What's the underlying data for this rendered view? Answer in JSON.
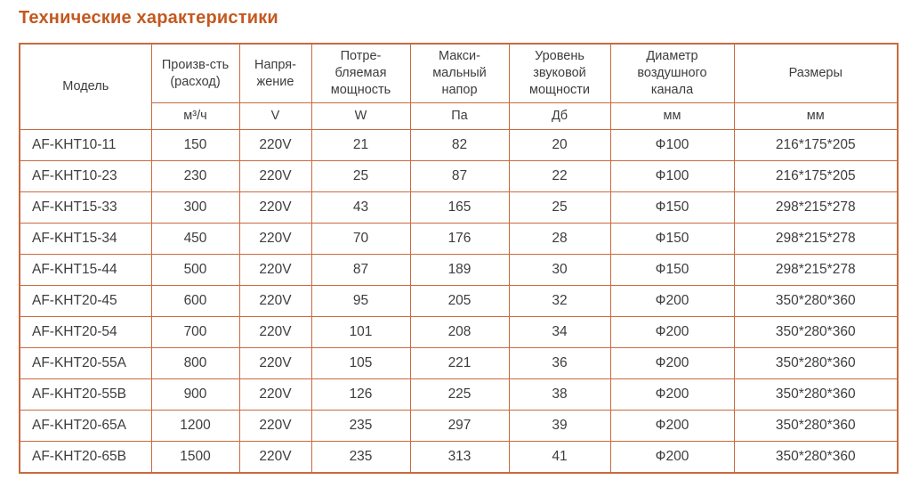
{
  "page_title": "Технические характеристики",
  "colors": {
    "accent": "#C4581F",
    "table_border": "#C96A3E",
    "text": "#3D3D3D",
    "background": "#FFFFFF"
  },
  "table": {
    "column_keys": [
      "model",
      "flow",
      "voltage",
      "power",
      "pressure",
      "noise",
      "diameter",
      "dimensions"
    ],
    "headers": [
      {
        "label": "Модель",
        "unit": ""
      },
      {
        "label": "Произв-сть\n(расход)",
        "unit": "м³/ч"
      },
      {
        "label": "Напря-\nжение",
        "unit": "V"
      },
      {
        "label": "Потре-\nбляемая\nмощность",
        "unit": "W"
      },
      {
        "label": "Макси-\nмальный\nнапор",
        "unit": "Па"
      },
      {
        "label": "Уровень\nзвуковой\nмощности",
        "unit": "Дб"
      },
      {
        "label": "Диаметр\nвоздушного\nканала",
        "unit": "мм"
      },
      {
        "label": "Размеры",
        "unit": "мм"
      }
    ],
    "rows": [
      {
        "model": "AF-KHT10-11",
        "flow": "150",
        "voltage": "220V",
        "power": "21",
        "pressure": "82",
        "noise": "20",
        "diameter": "Ф100",
        "dimensions": "216*175*205"
      },
      {
        "model": "AF-KHT10-23",
        "flow": "230",
        "voltage": "220V",
        "power": "25",
        "pressure": "87",
        "noise": "22",
        "diameter": "Ф100",
        "dimensions": "216*175*205"
      },
      {
        "model": "AF-KHT15-33",
        "flow": "300",
        "voltage": "220V",
        "power": "43",
        "pressure": "165",
        "noise": "25",
        "diameter": "Ф150",
        "dimensions": "298*215*278"
      },
      {
        "model": "AF-KHT15-34",
        "flow": "450",
        "voltage": "220V",
        "power": "70",
        "pressure": "176",
        "noise": "28",
        "diameter": "Ф150",
        "dimensions": "298*215*278"
      },
      {
        "model": "AF-KHT15-44",
        "flow": "500",
        "voltage": "220V",
        "power": "87",
        "pressure": "189",
        "noise": "30",
        "diameter": "Ф150",
        "dimensions": "298*215*278"
      },
      {
        "model": "AF-KHT20-45",
        "flow": "600",
        "voltage": "220V",
        "power": "95",
        "pressure": "205",
        "noise": "32",
        "diameter": "Ф200",
        "dimensions": "350*280*360"
      },
      {
        "model": "AF-KHT20-54",
        "flow": "700",
        "voltage": "220V",
        "power": "101",
        "pressure": "208",
        "noise": "34",
        "diameter": "Ф200",
        "dimensions": "350*280*360"
      },
      {
        "model": "AF-KHT20-55A",
        "flow": "800",
        "voltage": "220V",
        "power": "105",
        "pressure": "221",
        "noise": "36",
        "diameter": "Ф200",
        "dimensions": "350*280*360"
      },
      {
        "model": "AF-KHT20-55B",
        "flow": "900",
        "voltage": "220V",
        "power": "126",
        "pressure": "225",
        "noise": "38",
        "diameter": "Ф200",
        "dimensions": "350*280*360"
      },
      {
        "model": "AF-KHT20-65A",
        "flow": "1200",
        "voltage": "220V",
        "power": "235",
        "pressure": "297",
        "noise": "39",
        "diameter": "Ф200",
        "dimensions": "350*280*360"
      },
      {
        "model": "AF-KHT20-65B",
        "flow": "1500",
        "voltage": "220V",
        "power": "235",
        "pressure": "313",
        "noise": "41",
        "diameter": "Ф200",
        "dimensions": "350*280*360"
      }
    ]
  }
}
